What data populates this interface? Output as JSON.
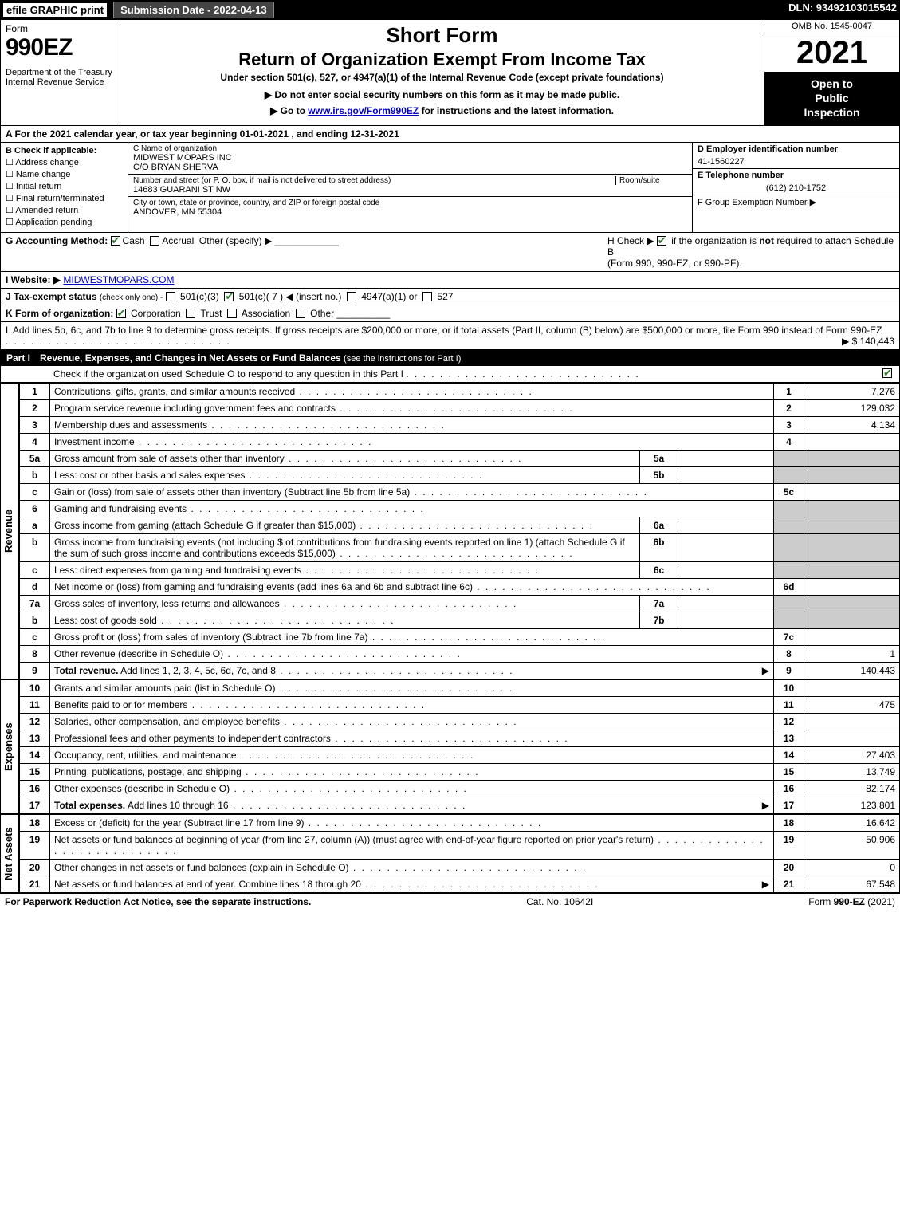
{
  "topbar": {
    "efile": "efile GRAPHIC print",
    "submission": "Submission Date - 2022-04-13",
    "dln": "DLN: 93492103015542"
  },
  "header": {
    "form_word": "Form",
    "form_number": "990EZ",
    "dept": "Department of the Treasury",
    "irs": "Internal Revenue Service",
    "short": "Short Form",
    "title": "Return of Organization Exempt From Income Tax",
    "subtitle": "Under section 501(c), 527, or 4947(a)(1) of the Internal Revenue Code (except private foundations)",
    "warn": "▶ Do not enter social security numbers on this form as it may be made public.",
    "goto_pre": "▶ Go to ",
    "goto_link": "www.irs.gov/Form990EZ",
    "goto_post": " for instructions and the latest information.",
    "omb": "OMB No. 1545-0047",
    "year": "2021",
    "opi1": "Open to",
    "opi2": "Public",
    "opi3": "Inspection"
  },
  "rowA": "A  For the 2021 calendar year, or tax year beginning 01-01-2021 , and ending 12-31-2021",
  "colB": {
    "title": "B  Check if applicable:",
    "items": [
      "Address change",
      "Name change",
      "Initial return",
      "Final return/terminated",
      "Amended return",
      "Application pending"
    ]
  },
  "colC": {
    "label1": "C Name of organization",
    "name": "MIDWEST MOPARS INC",
    "co": "C/O BRYAN SHERVA",
    "label2": "Number and street (or P. O. box, if mail is not delivered to street address)",
    "room": "Room/suite",
    "street": "14683 GUARANI ST NW",
    "label3": "City or town, state or province, country, and ZIP or foreign postal code",
    "city": "ANDOVER, MN  55304"
  },
  "colDEF": {
    "d_label": "D Employer identification number",
    "d_val": "41-1560227",
    "e_label": "E Telephone number",
    "e_val": "(612) 210-1752",
    "f_label": "F Group Exemption Number  ▶"
  },
  "rowG": {
    "label": "G Accounting Method:",
    "cash": "Cash",
    "accrual": "Accrual",
    "other": "Other (specify) ▶"
  },
  "rowH": {
    "text1": "H  Check ▶ ",
    "text2": " if the organization is not required to attach Schedule B",
    "text3": "(Form 990, 990-EZ, or 990-PF)."
  },
  "rowI": {
    "label": "I Website: ▶",
    "val": "MIDWESTMOPARS.COM"
  },
  "rowJ": {
    "label": "J Tax-exempt status",
    "sub": "(check only one) -",
    "o1": "501(c)(3)",
    "o2": "501(c)( 7 ) ◀ (insert no.)",
    "o3": "4947(a)(1) or",
    "o4": "527"
  },
  "rowK": {
    "label": "K Form of organization:",
    "opts": [
      "Corporation",
      "Trust",
      "Association",
      "Other"
    ]
  },
  "rowL": {
    "text": "L Add lines 5b, 6c, and 7b to line 9 to determine gross receipts. If gross receipts are $200,000 or more, or if total assets (Part II, column (B) below) are $500,000 or more, file Form 990 instead of Form 990-EZ",
    "amount": "▶ $ 140,443"
  },
  "part1": {
    "label": "Part I",
    "title": "Revenue, Expenses, and Changes in Net Assets or Fund Balances",
    "sub": "(see the instructions for Part I)",
    "check": "Check if the organization used Schedule O to respond to any question in this Part I"
  },
  "sections": {
    "revenue": "Revenue",
    "expenses": "Expenses",
    "netassets": "Net Assets"
  },
  "lines": [
    {
      "n": "1",
      "d": "Contributions, gifts, grants, and similar amounts received",
      "box": "1",
      "amt": "7,276"
    },
    {
      "n": "2",
      "d": "Program service revenue including government fees and contracts",
      "box": "2",
      "amt": "129,032"
    },
    {
      "n": "3",
      "d": "Membership dues and assessments",
      "box": "3",
      "amt": "4,134"
    },
    {
      "n": "4",
      "d": "Investment income",
      "box": "4",
      "amt": ""
    },
    {
      "n": "5a",
      "d": "Gross amount from sale of assets other than inventory",
      "sub": "5a"
    },
    {
      "n": "b",
      "d": "Less: cost or other basis and sales expenses",
      "sub": "5b"
    },
    {
      "n": "c",
      "d": "Gain or (loss) from sale of assets other than inventory (Subtract line 5b from line 5a)",
      "box": "5c",
      "amt": ""
    },
    {
      "n": "6",
      "d": "Gaming and fundraising events"
    },
    {
      "n": "a",
      "d": "Gross income from gaming (attach Schedule G if greater than $15,000)",
      "sub": "6a"
    },
    {
      "n": "b",
      "d": "Gross income from fundraising events (not including $                    of contributions from fundraising events reported on line 1) (attach Schedule G if the sum of such gross income and contributions exceeds $15,000)",
      "sub": "6b"
    },
    {
      "n": "c",
      "d": "Less: direct expenses from gaming and fundraising events",
      "sub": "6c"
    },
    {
      "n": "d",
      "d": "Net income or (loss) from gaming and fundraising events (add lines 6a and 6b and subtract line 6c)",
      "box": "6d",
      "amt": ""
    },
    {
      "n": "7a",
      "d": "Gross sales of inventory, less returns and allowances",
      "sub": "7a"
    },
    {
      "n": "b",
      "d": "Less: cost of goods sold",
      "sub": "7b"
    },
    {
      "n": "c",
      "d": "Gross profit or (loss) from sales of inventory (Subtract line 7b from line 7a)",
      "box": "7c",
      "amt": ""
    },
    {
      "n": "8",
      "d": "Other revenue (describe in Schedule O)",
      "box": "8",
      "amt": "1"
    },
    {
      "n": "9",
      "d": "Total revenue. Add lines 1, 2, 3, 4, 5c, 6d, 7c, and 8",
      "box": "9",
      "amt": "140,443",
      "bold": true,
      "arrow": true
    }
  ],
  "exp_lines": [
    {
      "n": "10",
      "d": "Grants and similar amounts paid (list in Schedule O)",
      "box": "10",
      "amt": ""
    },
    {
      "n": "11",
      "d": "Benefits paid to or for members",
      "box": "11",
      "amt": "475"
    },
    {
      "n": "12",
      "d": "Salaries, other compensation, and employee benefits",
      "box": "12",
      "amt": ""
    },
    {
      "n": "13",
      "d": "Professional fees and other payments to independent contractors",
      "box": "13",
      "amt": ""
    },
    {
      "n": "14",
      "d": "Occupancy, rent, utilities, and maintenance",
      "box": "14",
      "amt": "27,403"
    },
    {
      "n": "15",
      "d": "Printing, publications, postage, and shipping",
      "box": "15",
      "amt": "13,749"
    },
    {
      "n": "16",
      "d": "Other expenses (describe in Schedule O)",
      "box": "16",
      "amt": "82,174"
    },
    {
      "n": "17",
      "d": "Total expenses. Add lines 10 through 16",
      "box": "17",
      "amt": "123,801",
      "bold": true,
      "arrow": true
    }
  ],
  "na_lines": [
    {
      "n": "18",
      "d": "Excess or (deficit) for the year (Subtract line 17 from line 9)",
      "box": "18",
      "amt": "16,642"
    },
    {
      "n": "19",
      "d": "Net assets or fund balances at beginning of year (from line 27, column (A)) (must agree with end-of-year figure reported on prior year's return)",
      "box": "19",
      "amt": "50,906"
    },
    {
      "n": "20",
      "d": "Other changes in net assets or fund balances (explain in Schedule O)",
      "box": "20",
      "amt": "0"
    },
    {
      "n": "21",
      "d": "Net assets or fund balances at end of year. Combine lines 18 through 20",
      "box": "21",
      "amt": "67,548",
      "arrow": true
    }
  ],
  "footer": {
    "left": "For Paperwork Reduction Act Notice, see the separate instructions.",
    "center": "Cat. No. 10642I",
    "right": "Form 990-EZ (2021)"
  }
}
